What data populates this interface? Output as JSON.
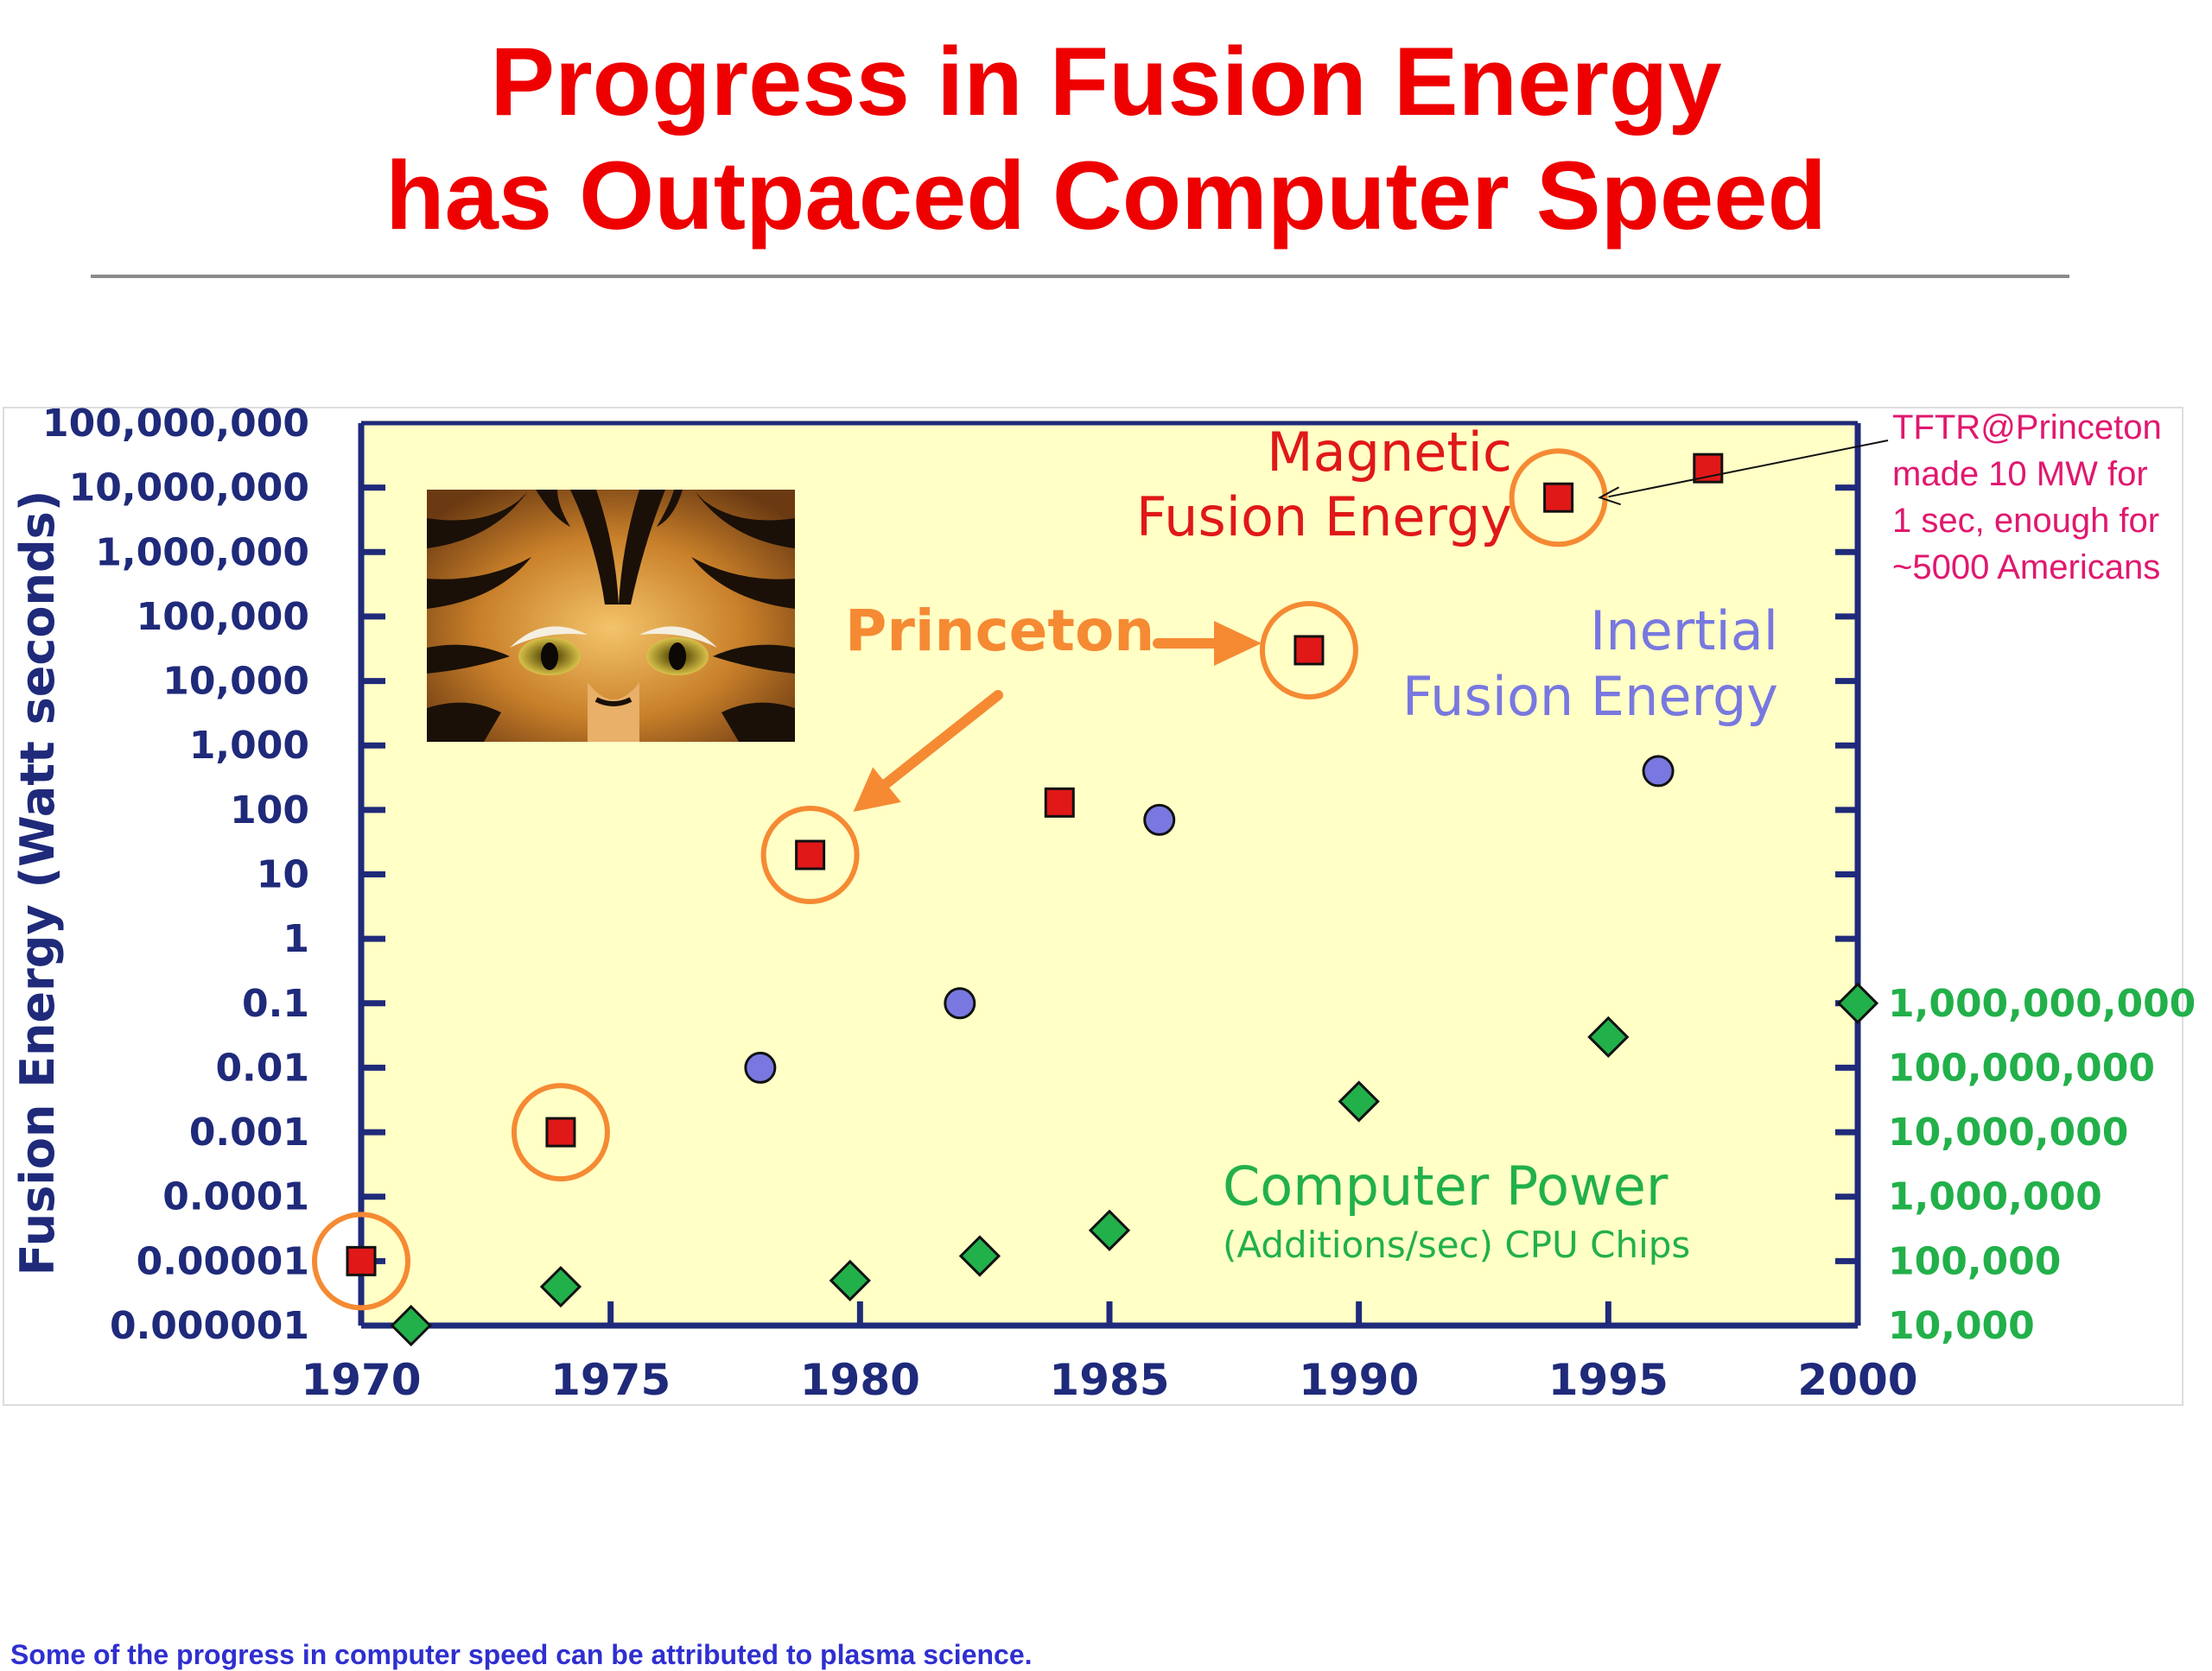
{
  "title": {
    "line1": "Progress in Fusion Energy",
    "line2": "has Outpaced Computer Speed"
  },
  "footnote": "Some of the progress in computer speed can be attributed to plasma science.",
  "colors": {
    "title": "#ee0000",
    "plot_background": "#ffffc6",
    "axis": "#1f2a7a",
    "magnetic": "#e01818",
    "inertial": "#7878e0",
    "computer": "#22b04a",
    "princeton": "#f58a33",
    "annotation": "#e0186e"
  },
  "chart_data": {
    "type": "scatter",
    "x_ticks": [
      1970,
      1975,
      1980,
      1985,
      1990,
      1995,
      2000
    ],
    "xlim": [
      1970,
      2000
    ],
    "y_left": {
      "label": "Fusion Energy (Watt seconds)",
      "scale": "log",
      "range": [
        1e-06,
        100000000
      ],
      "tick_labels": [
        "0.000001",
        "0.00001",
        "0.0001",
        "0.001",
        "0.01",
        "0.1",
        "1",
        "10",
        "100",
        "1,000",
        "10,000",
        "100,000",
        "1,000,000",
        "10,000,000",
        "100,000,000"
      ]
    },
    "y_right": {
      "scale": "log",
      "range": [
        10000,
        1000000000
      ],
      "tick_labels": [
        "10,000",
        "100,000",
        "1,000,000",
        "10,000,000",
        "100,000,000",
        "1,000,000,000"
      ]
    },
    "series": [
      {
        "name": "Magnetic Fusion Energy",
        "axis": "left",
        "marker": "square",
        "points": [
          {
            "x": 1970,
            "y": 1e-05,
            "princeton": true
          },
          {
            "x": 1974,
            "y": 0.001,
            "princeton": true
          },
          {
            "x": 1979,
            "y": 20,
            "princeton": true
          },
          {
            "x": 1984,
            "y": 130
          },
          {
            "x": 1989,
            "y": 30000,
            "princeton": true
          },
          {
            "x": 1994,
            "y": 7000000,
            "princeton": true
          },
          {
            "x": 1997,
            "y": 20000000
          }
        ]
      },
      {
        "name": "Inertial Fusion Energy",
        "axis": "left",
        "marker": "circle",
        "points": [
          {
            "x": 1978,
            "y": 0.01
          },
          {
            "x": 1982,
            "y": 0.1
          },
          {
            "x": 1986,
            "y": 70
          },
          {
            "x": 1996,
            "y": 400
          }
        ]
      },
      {
        "name": "Computer Power",
        "axis": "right",
        "marker": "diamond",
        "points": [
          {
            "x": 1971,
            "y": 10000
          },
          {
            "x": 1974,
            "y": 40000
          },
          {
            "x": 1979.8,
            "y": 50000
          },
          {
            "x": 1982.4,
            "y": 120000
          },
          {
            "x": 1985,
            "y": 300000
          },
          {
            "x": 1990,
            "y": 30000000
          },
          {
            "x": 1995,
            "y": 300000000
          },
          {
            "x": 2000,
            "y": 1000000000
          }
        ]
      }
    ],
    "labels": {
      "magnetic_line1": "Magnetic",
      "magnetic_line2": "Fusion Energy",
      "inertial_line1": "Inertial",
      "inertial_line2": "Fusion Energy",
      "computer_line1": "Computer Power",
      "computer_line2": "(Additions/sec) CPU Chips",
      "princeton": "Princeton"
    },
    "annotation": {
      "target": {
        "x": 1994,
        "y": 7000000
      },
      "lines": [
        "TFTR@Princeton",
        "made 10 MW for",
        "1 sec, enough for",
        "~5000 Americans"
      ]
    }
  }
}
